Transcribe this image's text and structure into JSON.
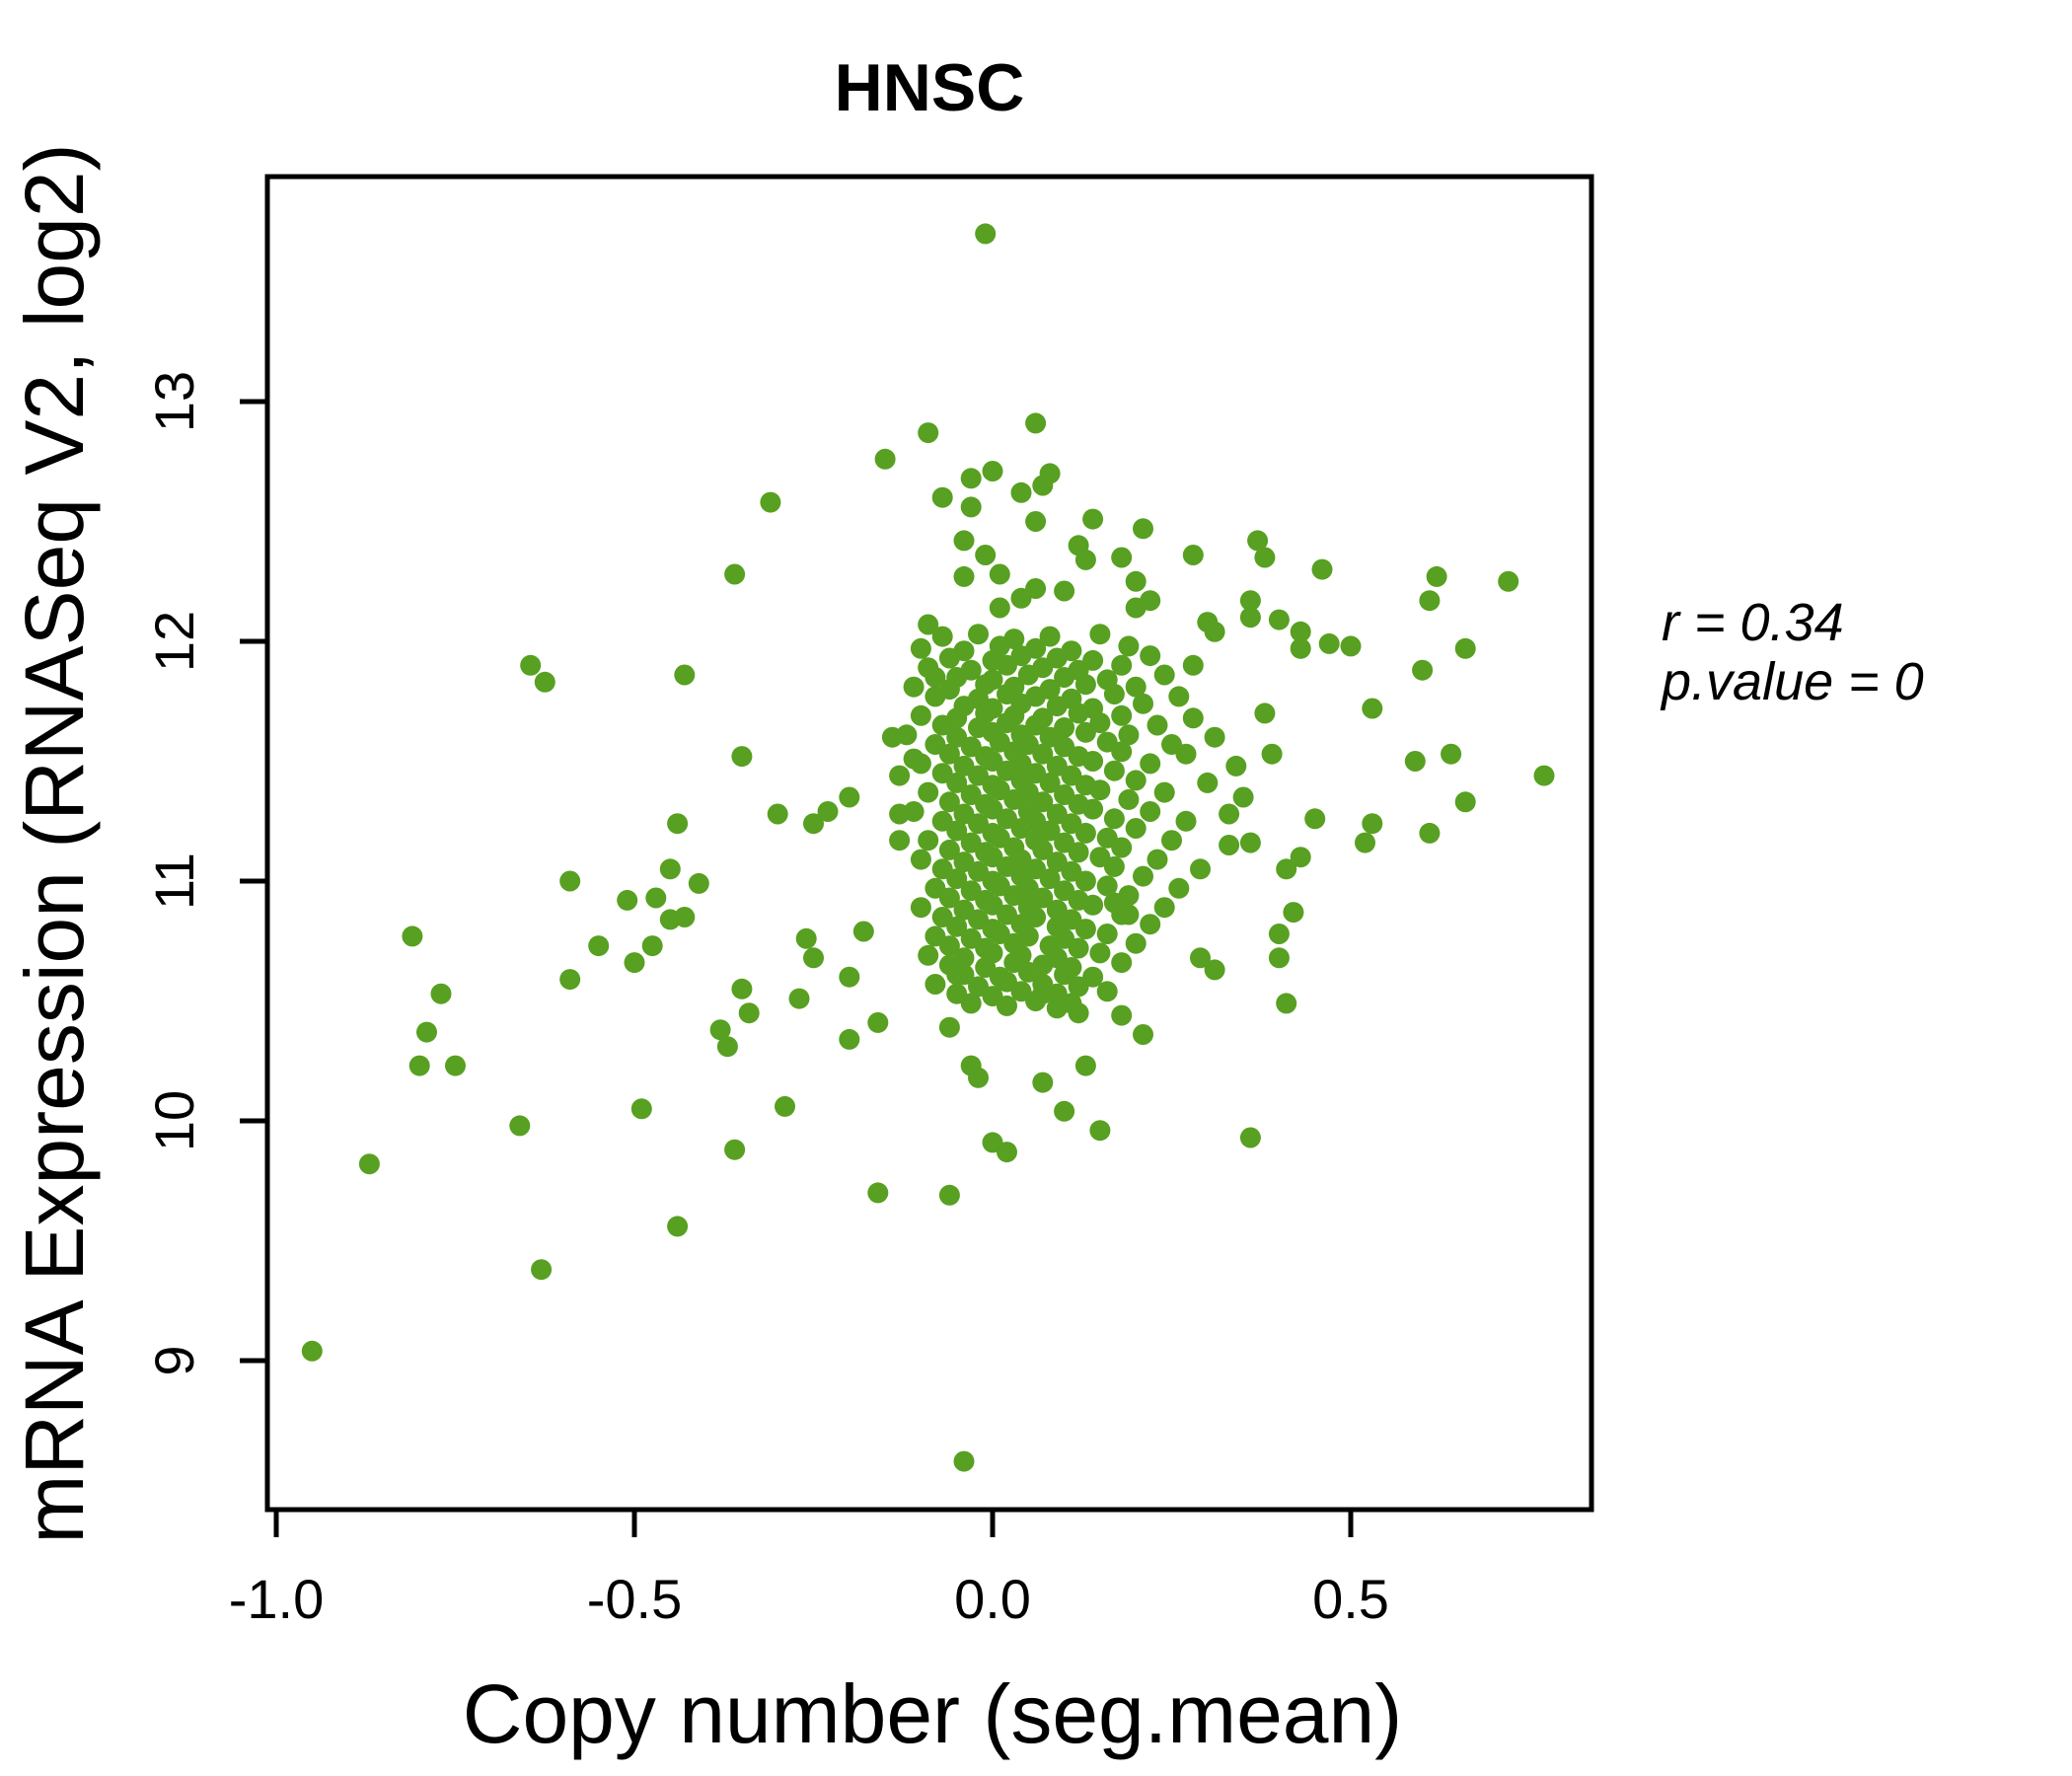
{
  "chart_data": {
    "type": "scatter",
    "title": "HNSC",
    "xlabel": "Copy number (seg.mean)",
    "ylabel": "mRNA Expression (RNASeq V2, log2)",
    "x_tick_values": [
      -1.0,
      -0.5,
      0.0,
      0.5
    ],
    "x_tick_labels": [
      "-1.0",
      "-0.5",
      "0.0",
      "0.5"
    ],
    "y_tick_values": [
      9,
      10,
      11,
      12,
      13
    ],
    "y_tick_labels": [
      "9",
      "10",
      "11",
      "12",
      "13"
    ],
    "xlim": [
      -1.01,
      0.84
    ],
    "ylim": [
      8.38,
      13.94
    ],
    "grid": false,
    "legend": "none",
    "point_color": "#57A021",
    "title_color": "#56A01E",
    "annotation": {
      "line1": "r = 0.34",
      "line2": "p.value = 0"
    },
    "points": [
      [
        -0.95,
        9.04
      ],
      [
        -0.87,
        9.82
      ],
      [
        -0.63,
        9.38
      ],
      [
        -0.66,
        9.98
      ],
      [
        -0.44,
        9.56
      ],
      [
        -0.36,
        9.88
      ],
      [
        -0.49,
        10.05
      ],
      [
        -0.29,
        10.06
      ],
      [
        -0.645,
        11.9
      ],
      [
        -0.625,
        11.83
      ],
      [
        -0.43,
        11.86
      ],
      [
        -0.59,
        11.0
      ],
      [
        -0.45,
        11.05
      ],
      [
        -0.41,
        10.99
      ],
      [
        -0.51,
        10.92
      ],
      [
        -0.47,
        10.93
      ],
      [
        -0.45,
        10.84
      ],
      [
        -0.43,
        10.85
      ],
      [
        -0.55,
        10.73
      ],
      [
        -0.475,
        10.73
      ],
      [
        -0.5,
        10.66
      ],
      [
        -0.59,
        10.59
      ],
      [
        -0.77,
        10.53
      ],
      [
        -0.81,
        10.77
      ],
      [
        -0.79,
        10.37
      ],
      [
        -0.8,
        10.23
      ],
      [
        -0.75,
        10.23
      ],
      [
        -0.35,
        10.55
      ],
      [
        -0.34,
        10.45
      ],
      [
        -0.38,
        10.38
      ],
      [
        -0.37,
        10.31
      ],
      [
        -0.27,
        10.51
      ],
      [
        -0.26,
        10.76
      ],
      [
        -0.25,
        10.68
      ],
      [
        -0.2,
        10.6
      ],
      [
        -0.2,
        10.34
      ],
      [
        -0.16,
        10.41
      ],
      [
        -0.18,
        10.79
      ],
      [
        -0.44,
        11.24
      ],
      [
        -0.36,
        12.28
      ],
      [
        -0.31,
        12.58
      ],
      [
        -0.35,
        11.52
      ],
      [
        -0.3,
        11.28
      ],
      [
        -0.25,
        11.24
      ],
      [
        -0.23,
        11.29
      ],
      [
        -0.2,
        11.35
      ],
      [
        -0.15,
        12.76
      ],
      [
        -0.09,
        12.87
      ],
      [
        -0.09,
        12.07
      ],
      [
        -0.08,
        11.85
      ],
      [
        -0.14,
        11.6
      ],
      [
        -0.11,
        11.51
      ],
      [
        -0.13,
        11.44
      ],
      [
        -0.13,
        11.28
      ],
      [
        -0.13,
        11.17
      ],
      [
        -0.01,
        13.7
      ],
      [
        0.06,
        12.91
      ],
      [
        0.0,
        12.71
      ],
      [
        -0.03,
        12.68
      ],
      [
        -0.07,
        12.6
      ],
      [
        -0.03,
        12.56
      ],
      [
        0.08,
        12.7
      ],
      [
        0.07,
        12.65
      ],
      [
        0.04,
        12.62
      ],
      [
        0.06,
        12.5
      ],
      [
        0.14,
        12.51
      ],
      [
        0.21,
        12.47
      ],
      [
        0.12,
        12.4
      ],
      [
        -0.04,
        12.42
      ],
      [
        0.13,
        12.34
      ],
      [
        0.18,
        12.35
      ],
      [
        0.28,
        12.36
      ],
      [
        0.37,
        12.42
      ],
      [
        0.38,
        12.35
      ],
      [
        0.46,
        12.3
      ],
      [
        -0.01,
        12.36
      ],
      [
        0.01,
        12.28
      ],
      [
        0.06,
        12.22
      ],
      [
        0.04,
        12.18
      ],
      [
        0.01,
        12.14
      ],
      [
        0.1,
        12.21
      ],
      [
        0.2,
        12.25
      ],
      [
        0.2,
        12.14
      ],
      [
        0.22,
        12.17
      ],
      [
        0.3,
        12.08
      ],
      [
        0.31,
        12.04
      ],
      [
        0.36,
        12.17
      ],
      [
        0.36,
        12.1
      ],
      [
        0.4,
        12.09
      ],
      [
        0.43,
        12.04
      ],
      [
        -0.04,
        12.27
      ],
      [
        0.43,
        11.97
      ],
      [
        0.47,
        11.99
      ],
      [
        0.5,
        11.98
      ],
      [
        0.62,
        12.27
      ],
      [
        0.61,
        12.17
      ],
      [
        0.72,
        12.25
      ],
      [
        0.66,
        11.97
      ],
      [
        0.6,
        11.88
      ],
      [
        0.53,
        11.72
      ],
      [
        0.59,
        11.5
      ],
      [
        0.64,
        11.53
      ],
      [
        0.77,
        11.44
      ],
      [
        0.66,
        11.33
      ],
      [
        0.53,
        11.24
      ],
      [
        0.61,
        11.2
      ],
      [
        0.52,
        11.16
      ],
      [
        0.43,
        11.1
      ],
      [
        0.42,
        10.87
      ],
      [
        0.4,
        10.78
      ],
      [
        0.4,
        10.68
      ],
      [
        0.41,
        10.49
      ],
      [
        0.36,
        9.93
      ],
      [
        0.28,
        11.9
      ],
      [
        0.29,
        10.68
      ],
      [
        0.31,
        10.63
      ],
      [
        -0.04,
        8.58
      ],
      [
        -0.06,
        9.69
      ],
      [
        0.0,
        9.91
      ],
      [
        0.02,
        9.87
      ],
      [
        -0.16,
        9.7
      ],
      [
        0.1,
        10.04
      ],
      [
        0.15,
        9.96
      ],
      [
        0.13,
        10.23
      ],
      [
        0.18,
        10.44
      ],
      [
        0.21,
        10.36
      ],
      [
        0.07,
        10.16
      ],
      [
        -0.03,
        10.23
      ],
      [
        -0.02,
        10.18
      ],
      [
        -0.06,
        10.39
      ],
      [
        0.07,
        10.53
      ],
      [
        0.09,
        10.47
      ],
      [
        0.12,
        10.45
      ],
      [
        0.17,
        10.91
      ],
      [
        0.19,
        10.86
      ],
      [
        -0.05,
        10.61
      ],
      [
        0.39,
        11.53
      ],
      [
        0.45,
        11.26
      ],
      [
        0.41,
        11.05
      ],
      [
        0.38,
        11.7
      ],
      [
        0.35,
        11.35
      ],
      [
        0.33,
        11.15
      ],
      [
        -0.07,
        12.02
      ],
      [
        -0.02,
        12.03
      ],
      [
        0.03,
        12.01
      ],
      [
        0.08,
        12.02
      ],
      [
        0.15,
        12.03
      ],
      [
        -0.1,
        11.97
      ],
      [
        -0.04,
        11.96
      ],
      [
        0.01,
        11.98
      ],
      [
        0.06,
        11.97
      ],
      [
        0.11,
        11.96
      ],
      [
        0.19,
        11.98
      ],
      [
        -0.06,
        11.93
      ],
      [
        0.0,
        11.92
      ],
      [
        0.04,
        11.94
      ],
      [
        0.09,
        11.93
      ],
      [
        0.14,
        11.92
      ],
      [
        0.22,
        11.94
      ],
      [
        -0.09,
        11.89
      ],
      [
        -0.03,
        11.88
      ],
      [
        0.02,
        11.9
      ],
      [
        0.07,
        11.89
      ],
      [
        0.12,
        11.88
      ],
      [
        0.18,
        11.9
      ],
      [
        -0.05,
        11.85
      ],
      [
        0.0,
        11.84
      ],
      [
        0.05,
        11.86
      ],
      [
        0.1,
        11.85
      ],
      [
        0.16,
        11.84
      ],
      [
        0.24,
        11.86
      ],
      [
        -0.11,
        11.81
      ],
      [
        -0.06,
        11.8
      ],
      [
        -0.01,
        11.82
      ],
      [
        0.03,
        11.81
      ],
      [
        0.08,
        11.8
      ],
      [
        0.13,
        11.82
      ],
      [
        0.2,
        11.81
      ],
      [
        -0.08,
        11.77
      ],
      [
        -0.02,
        11.76
      ],
      [
        0.02,
        11.78
      ],
      [
        0.06,
        11.77
      ],
      [
        0.11,
        11.76
      ],
      [
        0.17,
        11.78
      ],
      [
        0.26,
        11.77
      ],
      [
        -0.04,
        11.73
      ],
      [
        0.0,
        11.72
      ],
      [
        0.04,
        11.74
      ],
      [
        0.09,
        11.73
      ],
      [
        0.14,
        11.72
      ],
      [
        0.21,
        11.74
      ],
      [
        -0.1,
        11.69
      ],
      [
        -0.05,
        11.68
      ],
      [
        -0.01,
        11.7
      ],
      [
        0.03,
        11.69
      ],
      [
        0.07,
        11.68
      ],
      [
        0.12,
        11.7
      ],
      [
        0.18,
        11.69
      ],
      [
        0.28,
        11.68
      ],
      [
        -0.07,
        11.65
      ],
      [
        -0.02,
        11.64
      ],
      [
        0.02,
        11.66
      ],
      [
        0.06,
        11.65
      ],
      [
        0.1,
        11.64
      ],
      [
        0.15,
        11.66
      ],
      [
        0.23,
        11.65
      ],
      [
        -0.12,
        11.61
      ],
      [
        -0.05,
        11.6
      ],
      [
        0.0,
        11.62
      ],
      [
        0.04,
        11.61
      ],
      [
        0.08,
        11.6
      ],
      [
        0.13,
        11.62
      ],
      [
        0.19,
        11.61
      ],
      [
        0.31,
        11.6
      ],
      [
        -0.08,
        11.57
      ],
      [
        -0.03,
        11.56
      ],
      [
        0.01,
        11.58
      ],
      [
        0.05,
        11.57
      ],
      [
        0.1,
        11.56
      ],
      [
        0.16,
        11.58
      ],
      [
        0.25,
        11.57
      ],
      [
        -0.06,
        11.53
      ],
      [
        -0.01,
        11.52
      ],
      [
        0.03,
        11.54
      ],
      [
        0.07,
        11.53
      ],
      [
        0.12,
        11.52
      ],
      [
        0.18,
        11.54
      ],
      [
        0.27,
        11.53
      ],
      [
        -0.1,
        11.49
      ],
      [
        -0.04,
        11.48
      ],
      [
        0.0,
        11.5
      ],
      [
        0.04,
        11.49
      ],
      [
        0.09,
        11.48
      ],
      [
        0.14,
        11.5
      ],
      [
        0.22,
        11.49
      ],
      [
        0.34,
        11.48
      ],
      [
        -0.07,
        11.45
      ],
      [
        -0.02,
        11.44
      ],
      [
        0.02,
        11.46
      ],
      [
        0.06,
        11.45
      ],
      [
        0.11,
        11.44
      ],
      [
        0.17,
        11.46
      ],
      [
        -0.05,
        11.41
      ],
      [
        0.0,
        11.4
      ],
      [
        0.04,
        11.42
      ],
      [
        0.08,
        11.41
      ],
      [
        0.13,
        11.4
      ],
      [
        0.2,
        11.42
      ],
      [
        0.3,
        11.41
      ],
      [
        -0.09,
        11.37
      ],
      [
        -0.03,
        11.36
      ],
      [
        0.01,
        11.38
      ],
      [
        0.05,
        11.37
      ],
      [
        0.1,
        11.36
      ],
      [
        0.15,
        11.38
      ],
      [
        0.24,
        11.37
      ],
      [
        -0.06,
        11.33
      ],
      [
        -0.01,
        11.32
      ],
      [
        0.03,
        11.34
      ],
      [
        0.07,
        11.33
      ],
      [
        0.12,
        11.32
      ],
      [
        0.19,
        11.34
      ],
      [
        -0.11,
        11.29
      ],
      [
        -0.04,
        11.28
      ],
      [
        0.0,
        11.3
      ],
      [
        0.05,
        11.29
      ],
      [
        0.09,
        11.28
      ],
      [
        0.14,
        11.3
      ],
      [
        0.22,
        11.29
      ],
      [
        0.33,
        11.28
      ],
      [
        -0.07,
        11.25
      ],
      [
        -0.02,
        11.24
      ],
      [
        0.02,
        11.26
      ],
      [
        0.06,
        11.25
      ],
      [
        0.11,
        11.24
      ],
      [
        0.17,
        11.26
      ],
      [
        0.27,
        11.25
      ],
      [
        -0.05,
        11.21
      ],
      [
        0.0,
        11.2
      ],
      [
        0.04,
        11.22
      ],
      [
        0.08,
        11.21
      ],
      [
        0.13,
        11.2
      ],
      [
        0.2,
        11.22
      ],
      [
        -0.09,
        11.17
      ],
      [
        -0.03,
        11.16
      ],
      [
        0.01,
        11.18
      ],
      [
        0.06,
        11.17
      ],
      [
        0.1,
        11.16
      ],
      [
        0.16,
        11.18
      ],
      [
        0.25,
        11.17
      ],
      [
        0.36,
        11.16
      ],
      [
        -0.06,
        11.13
      ],
      [
        -0.01,
        11.12
      ],
      [
        0.03,
        11.14
      ],
      [
        0.07,
        11.13
      ],
      [
        0.12,
        11.12
      ],
      [
        0.18,
        11.14
      ],
      [
        -0.1,
        11.09
      ],
      [
        -0.04,
        11.08
      ],
      [
        0.0,
        11.1
      ],
      [
        0.04,
        11.09
      ],
      [
        0.09,
        11.08
      ],
      [
        0.15,
        11.1
      ],
      [
        0.23,
        11.09
      ],
      [
        -0.07,
        11.05
      ],
      [
        -0.02,
        11.04
      ],
      [
        0.02,
        11.06
      ],
      [
        0.06,
        11.05
      ],
      [
        0.11,
        11.04
      ],
      [
        0.17,
        11.06
      ],
      [
        0.29,
        11.05
      ],
      [
        -0.05,
        11.01
      ],
      [
        0.0,
        11.0
      ],
      [
        0.04,
        11.02
      ],
      [
        0.08,
        11.01
      ],
      [
        0.13,
        11.0
      ],
      [
        0.21,
        11.02
      ],
      [
        -0.08,
        10.97
      ],
      [
        -0.03,
        10.96
      ],
      [
        0.01,
        10.98
      ],
      [
        0.05,
        10.97
      ],
      [
        0.1,
        10.96
      ],
      [
        0.16,
        10.98
      ],
      [
        0.26,
        10.97
      ],
      [
        -0.06,
        10.93
      ],
      [
        -0.01,
        10.92
      ],
      [
        0.03,
        10.94
      ],
      [
        0.07,
        10.93
      ],
      [
        0.12,
        10.92
      ],
      [
        0.19,
        10.94
      ],
      [
        -0.1,
        10.89
      ],
      [
        -0.04,
        10.88
      ],
      [
        0.0,
        10.9
      ],
      [
        0.05,
        10.89
      ],
      [
        0.09,
        10.88
      ],
      [
        0.14,
        10.9
      ],
      [
        0.24,
        10.89
      ],
      [
        -0.07,
        10.85
      ],
      [
        -0.02,
        10.84
      ],
      [
        0.02,
        10.86
      ],
      [
        0.06,
        10.85
      ],
      [
        0.11,
        10.84
      ],
      [
        0.18,
        10.86
      ],
      [
        -0.05,
        10.81
      ],
      [
        0.0,
        10.8
      ],
      [
        0.04,
        10.82
      ],
      [
        0.09,
        10.81
      ],
      [
        0.13,
        10.8
      ],
      [
        0.22,
        10.82
      ],
      [
        -0.08,
        10.77
      ],
      [
        -0.03,
        10.76
      ],
      [
        0.01,
        10.78
      ],
      [
        0.05,
        10.77
      ],
      [
        0.1,
        10.76
      ],
      [
        0.16,
        10.78
      ],
      [
        -0.06,
        10.73
      ],
      [
        -0.01,
        10.72
      ],
      [
        0.03,
        10.74
      ],
      [
        0.08,
        10.73
      ],
      [
        0.12,
        10.72
      ],
      [
        0.2,
        10.74
      ],
      [
        -0.09,
        10.69
      ],
      [
        -0.04,
        10.68
      ],
      [
        0.0,
        10.7
      ],
      [
        0.04,
        10.69
      ],
      [
        0.09,
        10.68
      ],
      [
        0.15,
        10.7
      ],
      [
        -0.06,
        10.65
      ],
      [
        -0.01,
        10.64
      ],
      [
        0.03,
        10.66
      ],
      [
        0.07,
        10.65
      ],
      [
        0.11,
        10.64
      ],
      [
        0.18,
        10.66
      ],
      [
        -0.04,
        10.61
      ],
      [
        0.01,
        10.6
      ],
      [
        0.05,
        10.62
      ],
      [
        0.1,
        10.61
      ],
      [
        0.14,
        10.6
      ],
      [
        -0.08,
        10.57
      ],
      [
        -0.02,
        10.56
      ],
      [
        0.02,
        10.58
      ],
      [
        0.07,
        10.57
      ],
      [
        0.12,
        10.56
      ],
      [
        -0.05,
        10.53
      ],
      [
        0.0,
        10.52
      ],
      [
        0.04,
        10.54
      ],
      [
        0.09,
        10.53
      ],
      [
        0.16,
        10.54
      ],
      [
        -0.03,
        10.49
      ],
      [
        0.02,
        10.48
      ],
      [
        0.06,
        10.5
      ],
      [
        0.11,
        10.49
      ]
    ]
  }
}
